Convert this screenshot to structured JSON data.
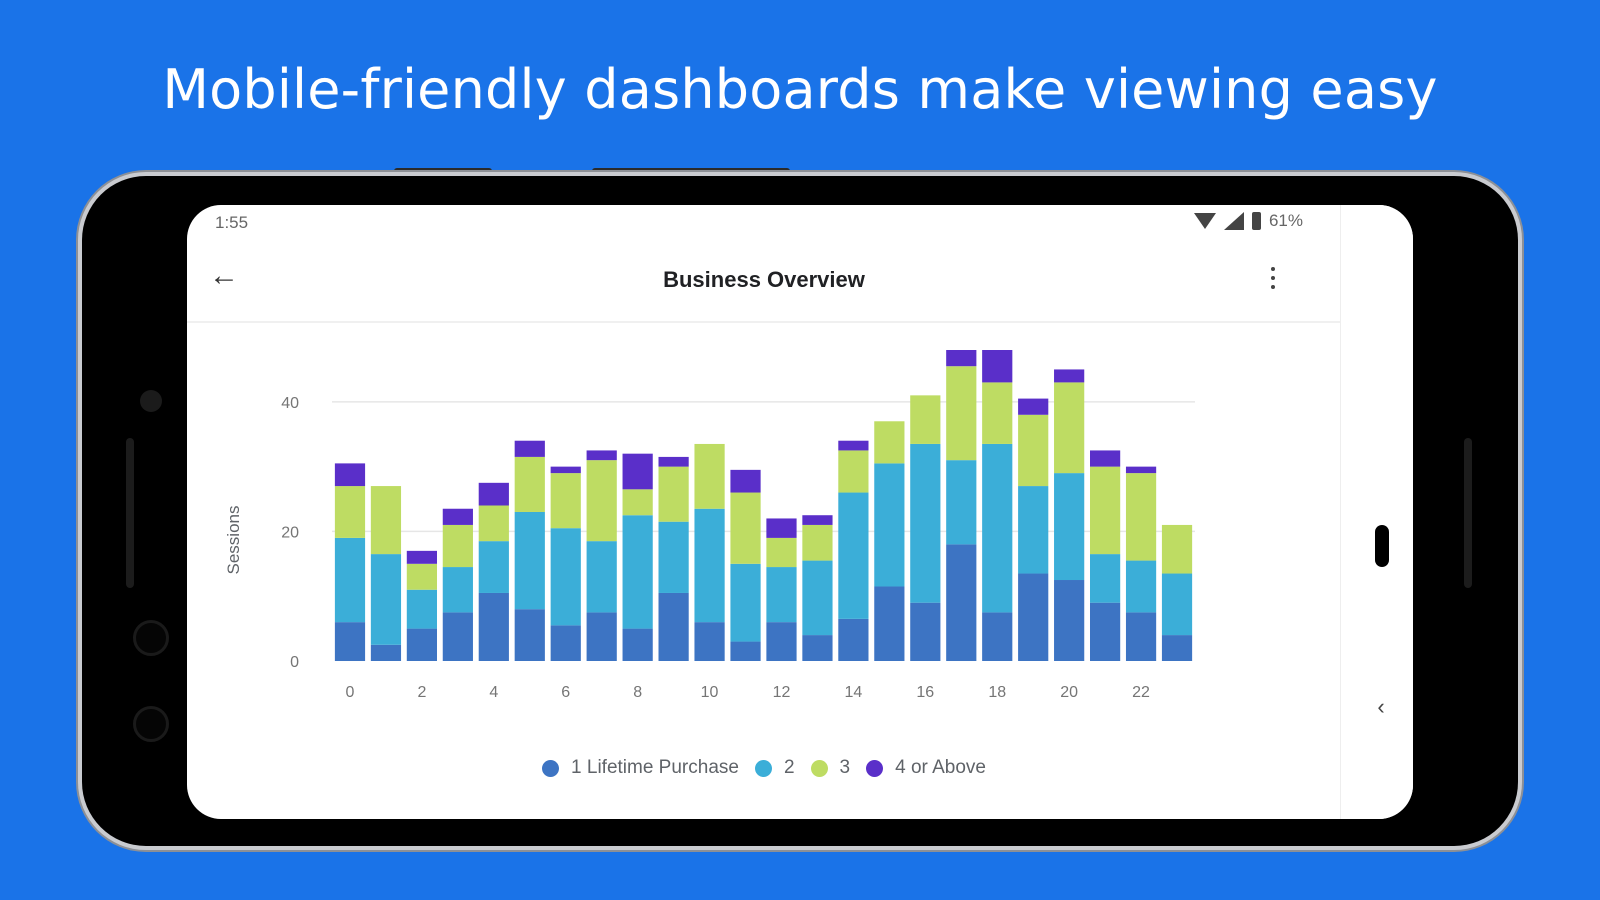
{
  "headline": "Mobile-friendly dashboards make viewing easy",
  "status_bar": {
    "time": "1:55",
    "battery": "61%"
  },
  "app_bar": {
    "title": "Business Overview"
  },
  "colors": {
    "background": "#1a73e8",
    "series1": "#3d74c3",
    "series2": "#3baed8",
    "series3": "#bedc63",
    "series4": "#5a2fc9"
  },
  "chart_data": {
    "type": "bar",
    "stacked": true,
    "ylabel": "Sessions",
    "ylim": [
      0,
      48
    ],
    "yticks": [
      "0",
      "20",
      "40"
    ],
    "xtick_labels": [
      "0",
      "2",
      "4",
      "6",
      "8",
      "10",
      "12",
      "14",
      "16",
      "18",
      "20",
      "22"
    ],
    "categories": [
      0,
      1,
      2,
      3,
      4,
      5,
      6,
      7,
      8,
      9,
      10,
      11,
      12,
      13,
      14,
      15,
      16,
      17,
      18,
      19,
      20,
      21,
      22,
      23
    ],
    "series": [
      {
        "name": "1 Lifetime Purchase",
        "color": "#3d74c3",
        "values": [
          6,
          2.5,
          5,
          7.5,
          10.5,
          8,
          5.5,
          7.5,
          5,
          10.5,
          6,
          3,
          6,
          4,
          6.5,
          11.5,
          9,
          18,
          7.5,
          13.5,
          12.5,
          9,
          7.5,
          4
        ]
      },
      {
        "name": "2",
        "color": "#3baed8",
        "values": [
          13,
          14,
          6,
          7,
          8,
          15,
          15,
          11,
          17.5,
          11,
          17.5,
          12,
          8.5,
          11.5,
          19.5,
          19,
          24.5,
          13,
          26,
          13.5,
          16.5,
          7.5,
          8,
          9.5
        ]
      },
      {
        "name": "3",
        "color": "#bedc63",
        "values": [
          8,
          10.5,
          4,
          6.5,
          5.5,
          8.5,
          8.5,
          12.5,
          4,
          8.5,
          10,
          11,
          4.5,
          5.5,
          6.5,
          6.5,
          7.5,
          14.5,
          9.5,
          11,
          14,
          13.5,
          13.5,
          7.5
        ]
      },
      {
        "name": "4 or Above",
        "color": "#5a2fc9",
        "values": [
          3.5,
          0,
          2,
          2.5,
          3.5,
          2.5,
          1,
          1.5,
          5.5,
          1.5,
          0,
          3.5,
          3,
          1.5,
          1.5,
          0,
          0,
          2.5,
          5,
          2.5,
          2,
          2.5,
          1,
          0
        ]
      }
    ],
    "legend_position": "bottom",
    "grid": true
  }
}
